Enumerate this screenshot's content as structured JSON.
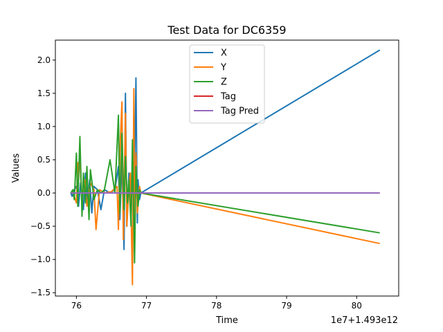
{
  "chart_data": {
    "type": "line",
    "title": "Test Data for DC6359",
    "xlabel": "Time",
    "ylabel": "Values",
    "x_offset_label": "1e7+1.493e12",
    "xlim": [
      75.7,
      80.6
    ],
    "ylim": [
      -1.55,
      2.3
    ],
    "x_ticks": [
      76,
      77,
      78,
      79,
      80
    ],
    "x_tick_labels": [
      "76",
      "77",
      "78",
      "79",
      "80"
    ],
    "y_ticks": [
      -1.5,
      -1.0,
      -0.5,
      0.0,
      0.5,
      1.0,
      1.5,
      2.0
    ],
    "y_tick_labels": [
      "−1.5",
      "−1.0",
      "−0.5",
      "0.0",
      "0.5",
      "1.0",
      "1.5",
      "2.0"
    ],
    "legend_position": "top-center",
    "grid": false,
    "series": [
      {
        "name": "X",
        "color": "#1f77b4",
        "x": [
          75.92,
          75.94,
          75.97,
          76.0,
          76.03,
          76.06,
          76.1,
          76.13,
          76.16,
          76.19,
          76.22,
          76.25,
          76.3,
          76.35,
          76.4,
          76.48,
          76.55,
          76.6,
          76.62,
          76.65,
          76.68,
          76.7,
          76.72,
          76.75,
          76.78,
          76.8,
          76.82,
          76.85,
          76.87,
          76.88,
          76.9,
          76.92,
          80.33
        ],
        "y": [
          0.0,
          -0.05,
          0.05,
          0.1,
          -0.2,
          0.15,
          -0.25,
          0.3,
          -0.15,
          0.2,
          -0.3,
          0.1,
          0.05,
          -0.25,
          0.05,
          0.0,
          0.05,
          0.4,
          -0.4,
          0.5,
          -0.85,
          1.5,
          -0.5,
          0.3,
          -0.4,
          0.5,
          -0.5,
          1.73,
          -0.45,
          0.2,
          -0.1,
          0.0,
          2.15
        ]
      },
      {
        "name": "Y",
        "color": "#ff7f0e",
        "x": [
          75.92,
          75.95,
          76.0,
          76.02,
          76.05,
          76.08,
          76.12,
          76.15,
          76.2,
          76.25,
          76.28,
          76.33,
          76.4,
          76.5,
          76.58,
          76.6,
          76.62,
          76.65,
          76.67,
          76.7,
          76.72,
          76.75,
          76.77,
          76.8,
          76.82,
          76.83,
          76.85,
          76.87,
          76.9,
          76.92,
          80.33
        ],
        "y": [
          0.0,
          0.02,
          -0.15,
          0.45,
          0.48,
          -0.1,
          0.2,
          -0.2,
          0.15,
          0.05,
          -0.55,
          0.05,
          0.0,
          0.02,
          0.1,
          -0.55,
          0.6,
          1.37,
          -0.7,
          1.2,
          -0.5,
          0.1,
          0.3,
          -1.38,
          1.57,
          -0.9,
          0.6,
          -0.3,
          0.1,
          0.0,
          -0.76
        ]
      },
      {
        "name": "Z",
        "color": "#2ca02c",
        "x": [
          75.92,
          75.95,
          75.97,
          76.0,
          76.02,
          76.05,
          76.08,
          76.1,
          76.13,
          76.15,
          76.18,
          76.2,
          76.23,
          76.25,
          76.3,
          76.35,
          76.4,
          76.48,
          76.55,
          76.6,
          76.62,
          76.65,
          76.68,
          76.7,
          76.73,
          76.75,
          76.78,
          76.8,
          76.83,
          76.85,
          76.88,
          76.9,
          76.92,
          80.33
        ],
        "y": [
          0.0,
          0.05,
          -0.1,
          0.6,
          -0.2,
          0.85,
          -0.35,
          0.3,
          -0.15,
          0.4,
          -0.4,
          0.35,
          0.1,
          -0.1,
          0.05,
          0.0,
          0.05,
          0.5,
          0.0,
          1.17,
          -0.3,
          0.9,
          -0.25,
          0.55,
          -0.15,
          0.2,
          -0.5,
          0.8,
          -1.05,
          0.4,
          -0.2,
          0.05,
          0.0,
          -0.6
        ]
      },
      {
        "name": "Tag",
        "color": "#d62728",
        "x": [
          75.92,
          80.33
        ],
        "y": [
          0.0,
          0.0
        ]
      },
      {
        "name": "Tag Pred",
        "color": "#9467bd",
        "x": [
          75.92,
          80.33
        ],
        "y": [
          0.0,
          0.0
        ]
      }
    ]
  }
}
